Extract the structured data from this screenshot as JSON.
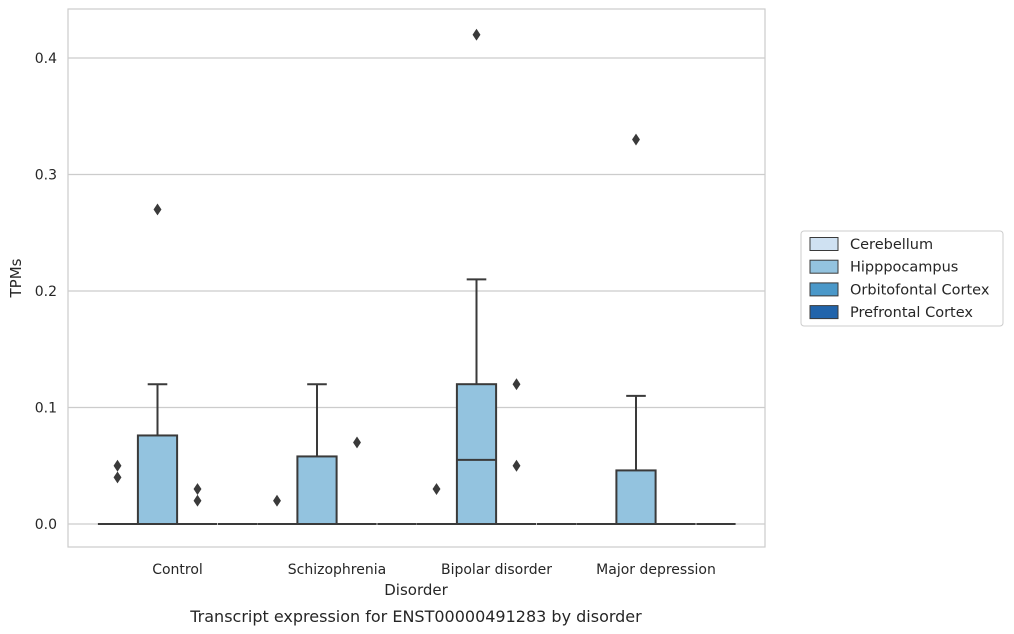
{
  "chart_data": {
    "type": "box",
    "caption": "Transcript expression for ENST00000491283 by disorder",
    "xlabel": "Disorder",
    "ylabel": "TPMs",
    "ylim": [
      -0.02,
      0.442
    ],
    "yticks": [
      0.0,
      0.1,
      0.2,
      0.3,
      0.4
    ],
    "ytick_labels": [
      "0.0",
      "0.1",
      "0.2",
      "0.3",
      "0.4"
    ],
    "grid": "horizontal",
    "categories": [
      "Control",
      "Schizophrenia",
      "Bipolar disorder",
      "Major depression"
    ],
    "legend_position": "right",
    "series": [
      {
        "name": "Cerebellum",
        "color": "#cfe1f2",
        "boxes": [
          {
            "q1": 0,
            "median": 0,
            "q3": 0,
            "whislo": 0,
            "whishi": 0,
            "fliers": []
          },
          {
            "q1": 0,
            "median": 0,
            "q3": 0,
            "whislo": 0,
            "whishi": 0,
            "fliers": []
          },
          {
            "q1": 0,
            "median": 0,
            "q3": 0,
            "whislo": 0,
            "whishi": 0,
            "fliers": []
          },
          {
            "q1": 0,
            "median": 0,
            "q3": 0,
            "whislo": 0,
            "whishi": 0,
            "fliers": []
          }
        ]
      },
      {
        "name": "Hipppocampus",
        "color": "#93c3df",
        "boxes": [
          {
            "q1": 0,
            "median": 0,
            "q3": 0.076,
            "whislo": 0,
            "whishi": 0.12,
            "fliers": [
              0.27
            ]
          },
          {
            "q1": 0,
            "median": 0,
            "q3": 0.058,
            "whislo": 0,
            "whishi": 0.12,
            "fliers": []
          },
          {
            "q1": 0,
            "median": 0.055,
            "q3": 0.12,
            "whislo": 0,
            "whishi": 0.21,
            "fliers": [
              0.42
            ]
          },
          {
            "q1": 0,
            "median": 0,
            "q3": 0.046,
            "whislo": 0,
            "whishi": 0.11,
            "fliers": [
              0.33
            ]
          }
        ]
      },
      {
        "name": "Orbitofontal Cortex",
        "color": "#4a98c9",
        "boxes": [
          {
            "q1": 0,
            "median": 0,
            "q3": 0,
            "whislo": 0,
            "whishi": 0,
            "fliers": []
          },
          {
            "q1": 0,
            "median": 0,
            "q3": 0,
            "whislo": 0,
            "whishi": 0,
            "fliers": []
          },
          {
            "q1": 0,
            "median": 0,
            "q3": 0,
            "whislo": 0,
            "whishi": 0,
            "fliers": []
          },
          {
            "q1": 0,
            "median": 0,
            "q3": 0,
            "whislo": 0,
            "whishi": 0,
            "fliers": []
          }
        ]
      },
      {
        "name": "Prefrontal Cortex",
        "color": "#2164ab",
        "boxes": [
          {
            "q1": 0,
            "median": 0,
            "q3": 0,
            "whislo": 0,
            "whishi": 0,
            "fliers": []
          },
          {
            "q1": 0,
            "median": 0,
            "q3": 0,
            "whislo": 0,
            "whishi": 0,
            "fliers": []
          },
          {
            "q1": 0,
            "median": 0,
            "q3": 0,
            "whislo": 0,
            "whishi": 0,
            "fliers": []
          },
          {
            "q1": 0,
            "median": 0,
            "q3": 0,
            "whislo": 0,
            "whishi": 0,
            "fliers": []
          }
        ]
      }
    ],
    "extra_fliers": [
      {
        "category": "Control",
        "side": "left",
        "values": [
          0.05,
          0.04
        ]
      },
      {
        "category": "Control",
        "side": "right",
        "values": [
          0.03,
          0.02
        ]
      },
      {
        "category": "Schizophrenia",
        "side": "left",
        "values": [
          0.02
        ]
      },
      {
        "category": "Schizophrenia",
        "side": "right",
        "values": [
          0.07
        ]
      },
      {
        "category": "Bipolar disorder",
        "side": "left",
        "values": [
          0.03
        ]
      },
      {
        "category": "Bipolar disorder",
        "side": "right",
        "values": [
          0.12,
          0.05
        ]
      }
    ],
    "line_color": "#3a3a3a",
    "grid_color": "#cccccc"
  }
}
